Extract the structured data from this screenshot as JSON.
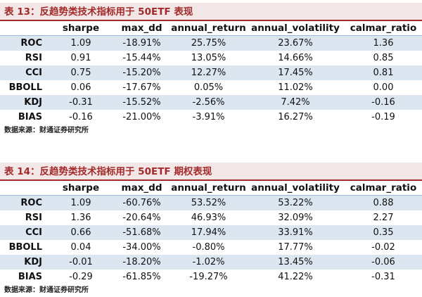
{
  "headers": [
    "",
    "sharpe",
    "max_dd",
    "annual_return",
    "annual_volatility",
    "calmar_ratio"
  ],
  "table13": {
    "title": "表 13：反趋势类技术指标用于 50ETF 表现",
    "rows": [
      [
        "ROC",
        "1.09",
        "-18.91%",
        "25.75%",
        "23.67%",
        "1.36"
      ],
      [
        "RSI",
        "0.91",
        "-15.44%",
        "13.05%",
        "14.66%",
        "0.85"
      ],
      [
        "CCI",
        "0.75",
        "-15.20%",
        "12.27%",
        "17.45%",
        "0.81"
      ],
      [
        "BBOLL",
        "0.06",
        "-17.67%",
        "0.05%",
        "11.02%",
        "0.00"
      ],
      [
        "KDJ",
        "-0.31",
        "-15.52%",
        "-2.56%",
        "7.42%",
        "-0.16"
      ],
      [
        "BIAS",
        "-0.16",
        "-21.00%",
        "-3.91%",
        "16.27%",
        "-0.19"
      ]
    ],
    "source": "数据来源：财通证券研究所"
  },
  "table14": {
    "title": "表 14：反趋势类技术指标用于 50ETF 期权表现",
    "rows": [
      [
        "ROC",
        "1.09",
        "-60.76%",
        "53.52%",
        "53.22%",
        "0.88"
      ],
      [
        "RSI",
        "1.36",
        "-20.64%",
        "46.93%",
        "32.09%",
        "2.27"
      ],
      [
        "CCI",
        "0.66",
        "-51.68%",
        "17.94%",
        "33.91%",
        "0.35"
      ],
      [
        "BBOLL",
        "0.04",
        "-34.00%",
        "-0.80%",
        "17.77%",
        "-0.02"
      ],
      [
        "KDJ",
        "-0.01",
        "-18.20%",
        "-1.02%",
        "13.45%",
        "-0.06"
      ],
      [
        "BIAS",
        "-0.29",
        "-61.85%",
        "-19.27%",
        "41.22%",
        "-0.31"
      ]
    ],
    "source": "数据来源：财通证券研究所"
  }
}
